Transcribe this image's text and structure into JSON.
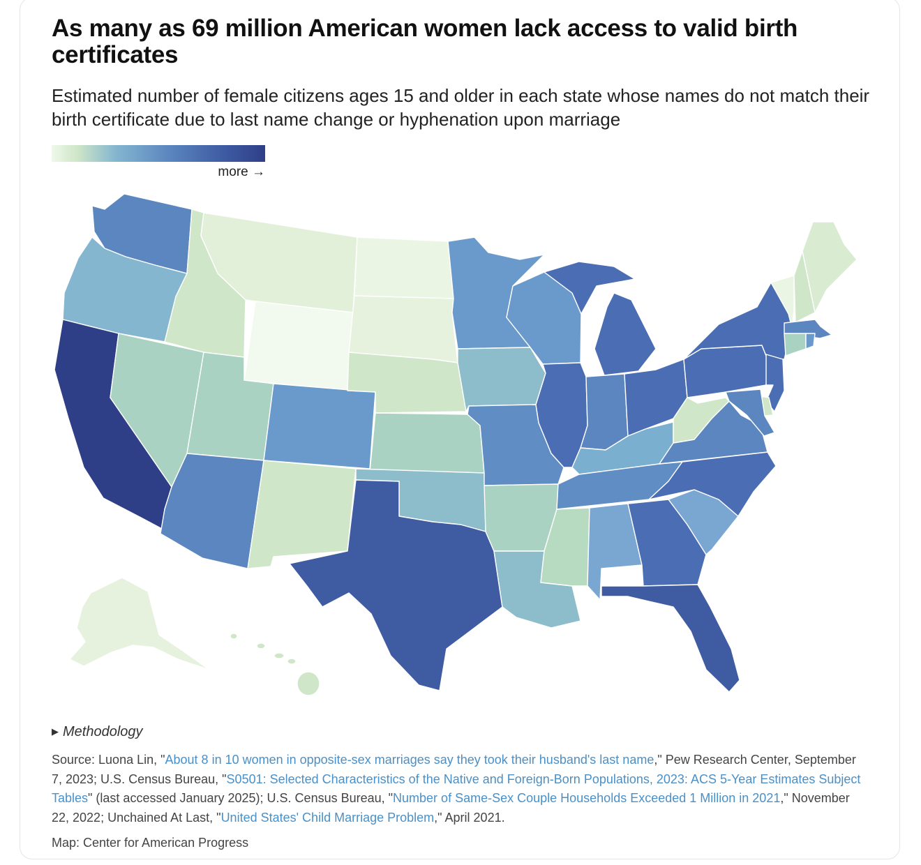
{
  "title": "As many as 69 million American women lack access to valid birth certificates",
  "subtitle": "Estimated number of female citizens ages 15 and older in each state whose names do not match their birth certificate due to last name change or hyphenation upon marriage",
  "legend": {
    "label": "more →",
    "colors": [
      "#eef8ea",
      "#cfe6c8",
      "#84b6cf",
      "#5b86bf",
      "#2f3f87"
    ]
  },
  "methodology": {
    "toggle": "▶",
    "label": "Methodology"
  },
  "source": {
    "t1": "Source: Luona Lin, \"",
    "l1": "About 8 in 10 women in opposite-sex marriages say they took their husband's last name",
    "t2": ",\" Pew Research Center, September 7, 2023; U.S. Census Bureau, \"",
    "l2": "S0501: Selected Characteristics of the Native and Foreign-Born Populations, 2023: ACS 5-Year Estimates Subject Tables",
    "t3": "\" (last accessed January 2025); U.S. Census Bureau, \"",
    "l3": "Number of Same-Sex Couple Households Exceeded 1 Million in 2021",
    "t4": ",\" November 22, 2022; Unchained At Last, \"",
    "l4": "United States' Child Marriage Problem",
    "t5": ",\" April 2021."
  },
  "credit": "Map: Center for American Progress",
  "states": [
    {
      "id": "WA",
      "color": "#5b86bf"
    },
    {
      "id": "OR",
      "color": "#84b6cf"
    },
    {
      "id": "CA",
      "color": "#2f3f87"
    },
    {
      "id": "ID",
      "color": "#cfe6c8"
    },
    {
      "id": "NV",
      "color": "#a9d2c3"
    },
    {
      "id": "MT",
      "color": "#e2f0da"
    },
    {
      "id": "WY",
      "color": "#f2f9ee"
    },
    {
      "id": "UT",
      "color": "#a9d2c3"
    },
    {
      "id": "AZ",
      "color": "#5b86bf"
    },
    {
      "id": "CO",
      "color": "#6a9acb"
    },
    {
      "id": "NM",
      "color": "#cfe6c8"
    },
    {
      "id": "ND",
      "color": "#eaf5e4"
    },
    {
      "id": "SD",
      "color": "#e6f2de"
    },
    {
      "id": "NE",
      "color": "#cfe6c8"
    },
    {
      "id": "KS",
      "color": "#a9d2c3"
    },
    {
      "id": "OK",
      "color": "#8dbccb"
    },
    {
      "id": "TX",
      "color": "#3f5ca3"
    },
    {
      "id": "MN",
      "color": "#6a9acb"
    },
    {
      "id": "IA",
      "color": "#8dbccb"
    },
    {
      "id": "MO",
      "color": "#5f8dc4"
    },
    {
      "id": "AR",
      "color": "#a9d2c3"
    },
    {
      "id": "LA",
      "color": "#8dbccb"
    },
    {
      "id": "WI",
      "color": "#6a9acb"
    },
    {
      "id": "IL",
      "color": "#4a6db4"
    },
    {
      "id": "MI",
      "color": "#4a6db4"
    },
    {
      "id": "IN",
      "color": "#5b86bf"
    },
    {
      "id": "OH",
      "color": "#4a6db4"
    },
    {
      "id": "KY",
      "color": "#7bafd0"
    },
    {
      "id": "TN",
      "color": "#5f8dc4"
    },
    {
      "id": "MS",
      "color": "#b6dbc0"
    },
    {
      "id": "AL",
      "color": "#7aa7d1"
    },
    {
      "id": "GA",
      "color": "#4a6db4"
    },
    {
      "id": "FL",
      "color": "#3f5ca3"
    },
    {
      "id": "SC",
      "color": "#7aa7d1"
    },
    {
      "id": "NC",
      "color": "#4a6db4"
    },
    {
      "id": "VA",
      "color": "#5b86bf"
    },
    {
      "id": "WV",
      "color": "#cfe6c8"
    },
    {
      "id": "PA",
      "color": "#4a6db4"
    },
    {
      "id": "NY",
      "color": "#4a6db4"
    },
    {
      "id": "VT",
      "color": "#eaf5e4"
    },
    {
      "id": "NH",
      "color": "#cfe6c8"
    },
    {
      "id": "ME",
      "color": "#d9ecd2"
    },
    {
      "id": "MA",
      "color": "#5b86bf"
    },
    {
      "id": "CT",
      "color": "#a9d2c3"
    },
    {
      "id": "RI",
      "color": "#6a9acb"
    },
    {
      "id": "NJ",
      "color": "#4a6db4"
    },
    {
      "id": "DE",
      "color": "#cfe6c8"
    },
    {
      "id": "MD",
      "color": "#5b86bf"
    },
    {
      "id": "AK",
      "color": "#e6f2de"
    },
    {
      "id": "HI",
      "color": "#cfe6c8"
    }
  ]
}
